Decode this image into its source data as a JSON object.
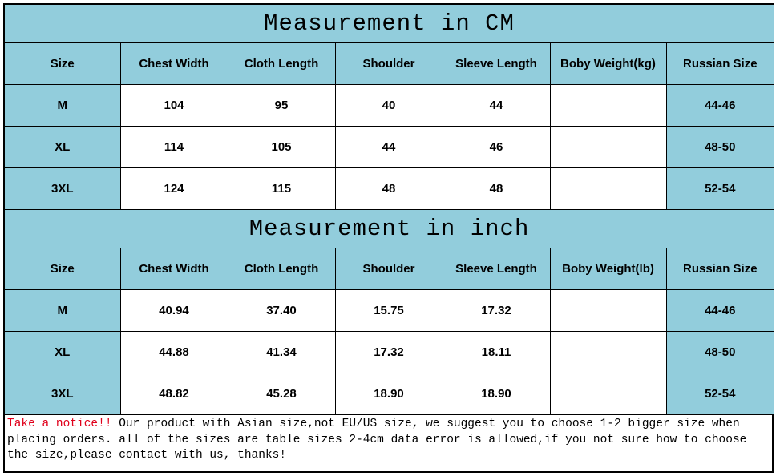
{
  "colors": {
    "accent_blue": "#92cddc",
    "notice_red": "#e0001b"
  },
  "cm_table": {
    "title": "Measurement in CM",
    "headers": [
      "Size",
      "Chest Width",
      "Cloth Length",
      "Shoulder",
      "Sleeve Length",
      "Boby Weight(kg)",
      "Russian Size"
    ],
    "rows": [
      [
        "M",
        "104",
        "95",
        "40",
        "44",
        "",
        "44-46"
      ],
      [
        "XL",
        "114",
        "105",
        "44",
        "46",
        "",
        "48-50"
      ],
      [
        "3XL",
        "124",
        "115",
        "48",
        "48",
        "",
        "52-54"
      ]
    ]
  },
  "inch_table": {
    "title": "Measurement in inch",
    "headers": [
      "Size",
      "Chest Width",
      "Cloth Length",
      "Shoulder",
      "Sleeve Length",
      "Boby Weight(lb)",
      "Russian Size"
    ],
    "rows": [
      [
        "M",
        "40.94",
        "37.40",
        "15.75",
        "17.32",
        "",
        "44-46"
      ],
      [
        "XL",
        "44.88",
        "41.34",
        "17.32",
        "18.11",
        "",
        "48-50"
      ],
      [
        "3XL",
        "48.82",
        "45.28",
        "18.90",
        "18.90",
        "",
        "52-54"
      ]
    ]
  },
  "notice": {
    "lead": "Take a notice!!",
    "body": " Our product with Asian size,not EU/US size, we suggest you to choose 1-2 bigger size when placing orders. all of the sizes are table sizes 2-4cm data error is allowed,if you not sure how to choose the size,please contact with us, thanks!"
  }
}
